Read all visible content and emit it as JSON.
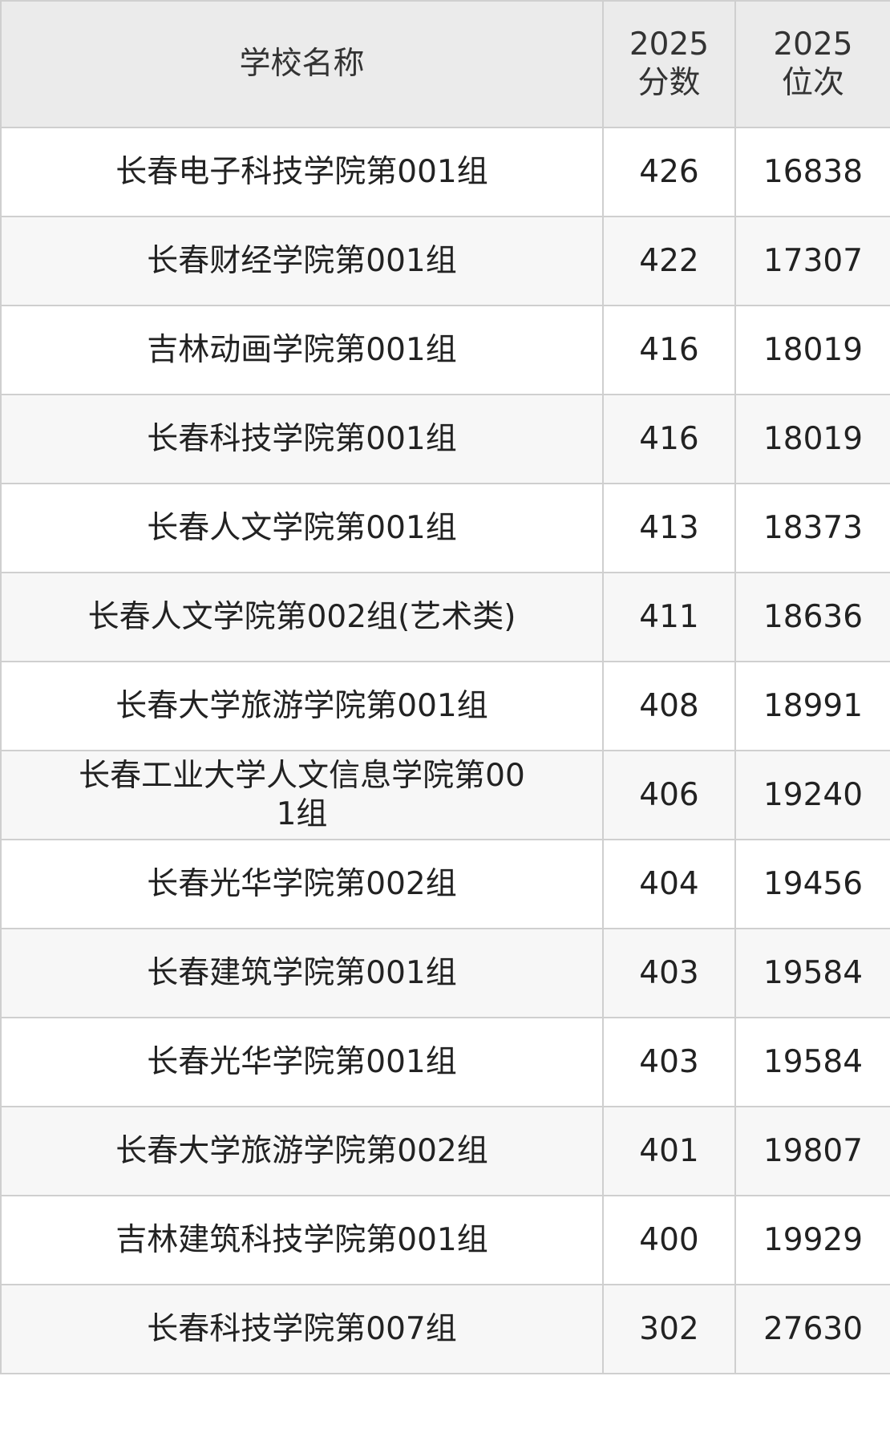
{
  "table": {
    "header": [
      "学校名称",
      "2025\n分数",
      "2025\n位次"
    ],
    "rows": [
      [
        "长春电子科技学院第001组",
        426,
        16838
      ],
      [
        "长春财经学院第001组",
        422,
        17307
      ],
      [
        "吉林动画学院第001组",
        416,
        18019
      ],
      [
        "长春科技学院第001组",
        416,
        18019
      ],
      [
        "长春人文学院第001组",
        413,
        18373
      ],
      [
        "长春人文学院第002组(艺术类)",
        411,
        18636
      ],
      [
        "长春大学旅游学院第001组",
        408,
        18991
      ],
      [
        "长春工业大学人文信息学院第001组",
        406,
        19240
      ],
      [
        "长春光华学院第002组",
        404,
        19456
      ],
      [
        "长春建筑学院第001组",
        403,
        19584
      ],
      [
        "长春光华学院第001组",
        403,
        19584
      ],
      [
        "长春大学旅游学院第002组",
        401,
        19807
      ],
      [
        "吉林建筑科技学院第001组",
        400,
        19929
      ],
      [
        "长春科技学院第007组",
        302,
        27630
      ]
    ]
  }
}
